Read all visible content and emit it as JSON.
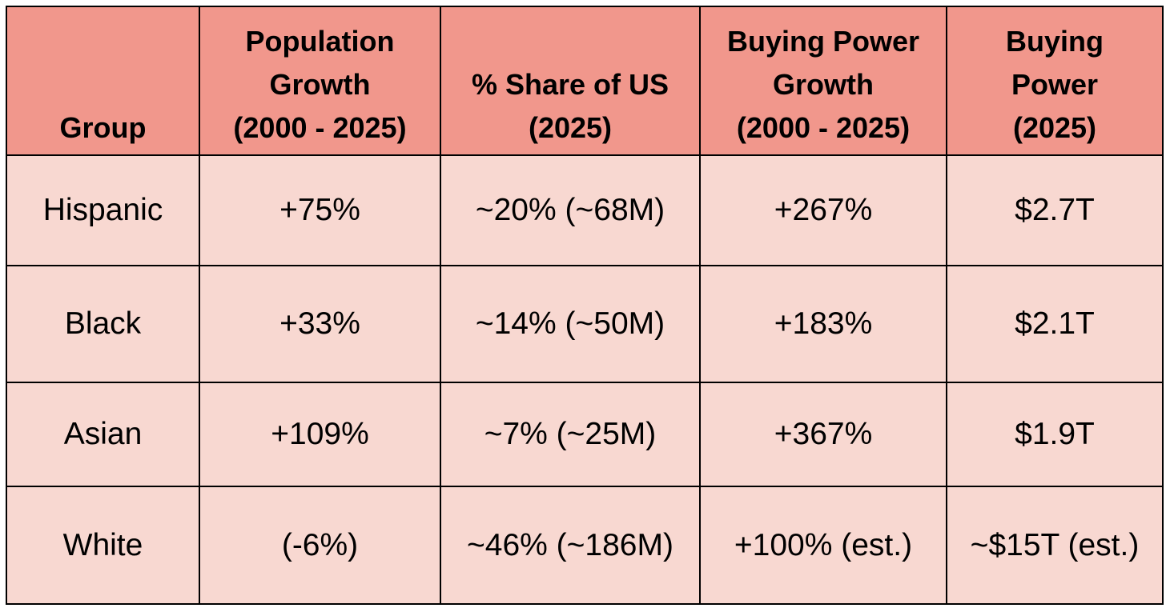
{
  "table": {
    "header": [
      [
        "Group"
      ],
      [
        "Population",
        "Growth",
        "(2000 - 2025)"
      ],
      [
        "% Share of US",
        "(2025)"
      ],
      [
        "Buying Power",
        "Growth",
        "(2000 - 2025)"
      ],
      [
        "Buying",
        "Power",
        "(2025)"
      ]
    ],
    "rows": [
      [
        "Hispanic",
        "+75%",
        "~20% (~68M)",
        "+267%",
        "$2.7T"
      ],
      [
        "Black",
        "+33%",
        "~14% (~50M)",
        "+183%",
        "$2.1T"
      ],
      [
        "Asian",
        "+109%",
        "~7% (~25M)",
        "+367%",
        "$1.9T"
      ],
      [
        "White",
        "(-6%)",
        "~46% (~186M)",
        "+100% (est.)",
        "~$15T (est.)"
      ]
    ]
  }
}
